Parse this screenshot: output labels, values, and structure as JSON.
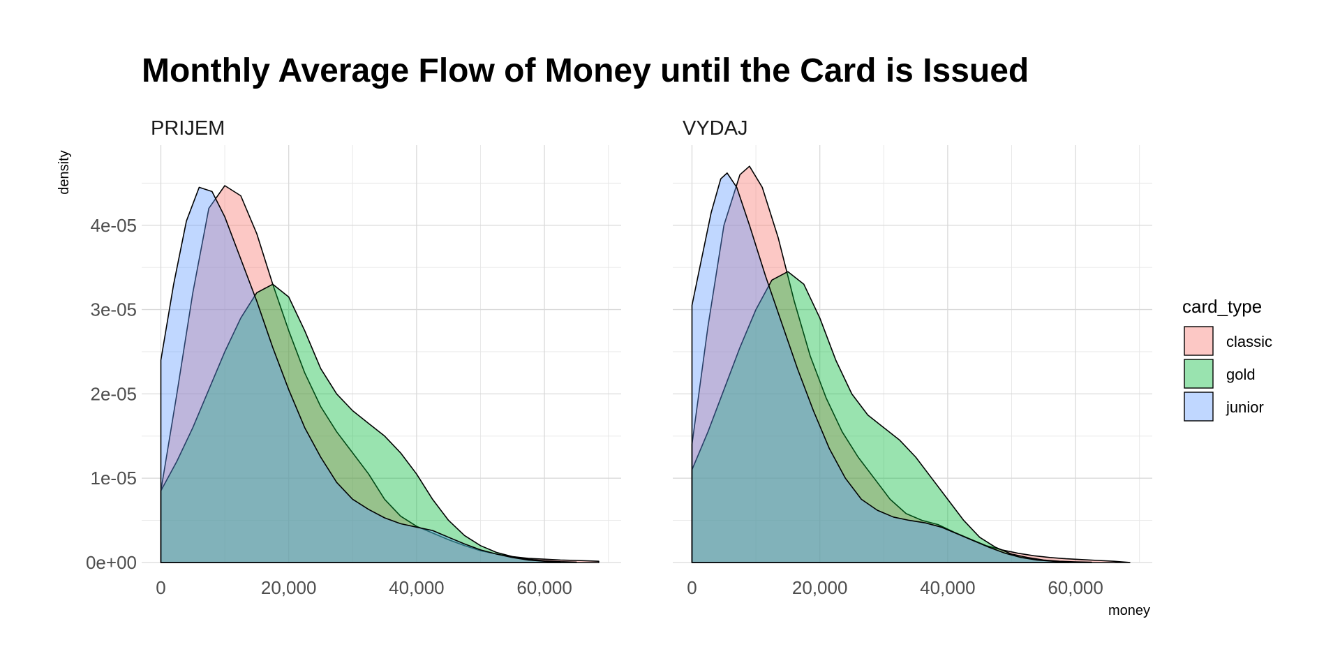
{
  "chart_data": {
    "type": "area",
    "title": "Monthly Average Flow of Money until the Card is Issued",
    "xlabel": "money",
    "ylabel": "density",
    "xlim": [
      -3000,
      72000
    ],
    "ylim": [
      0,
      4.95e-05
    ],
    "x_ticks": [
      0,
      20000,
      40000,
      60000
    ],
    "x_tick_labels": [
      "0",
      "20,000",
      "40,000",
      "60,000"
    ],
    "y_ticks": [
      0,
      1e-05,
      2e-05,
      3e-05,
      4e-05
    ],
    "y_tick_labels": [
      "0e+00",
      "1e-05",
      "2e-05",
      "3e-05",
      "4e-05"
    ],
    "grid": true,
    "legend": {
      "title": "card_type",
      "position": "right",
      "entries": [
        "classic",
        "gold",
        "junior"
      ]
    },
    "colors": {
      "classic": "#F8766D",
      "gold": "#00BA38",
      "junior": "#619CFF"
    },
    "fill_opacity": 0.4,
    "panels": [
      {
        "facet": "PRIJEM",
        "series": [
          {
            "name": "classic",
            "points": [
              [
                0,
                8.5e-06
              ],
              [
                2500,
                2e-05
              ],
              [
                5000,
                3.2e-05
              ],
              [
                7500,
                4.2e-05
              ],
              [
                10000,
                4.47e-05
              ],
              [
                12500,
                4.35e-05
              ],
              [
                15000,
                3.9e-05
              ],
              [
                17500,
                3.3e-05
              ],
              [
                20000,
                2.75e-05
              ],
              [
                22500,
                2.25e-05
              ],
              [
                25000,
                1.85e-05
              ],
              [
                27500,
                1.55e-05
              ],
              [
                30000,
                1.3e-05
              ],
              [
                32500,
                1.05e-05
              ],
              [
                35000,
                7.5e-06
              ],
              [
                37500,
                5.5e-06
              ],
              [
                40000,
                4.3e-06
              ],
              [
                42500,
                3.5e-06
              ],
              [
                45000,
                2.7e-06
              ],
              [
                47500,
                2e-06
              ],
              [
                50000,
                1.4e-06
              ],
              [
                52500,
                1e-06
              ],
              [
                55000,
                7e-07
              ],
              [
                57500,
                5e-07
              ],
              [
                60000,
                4e-07
              ],
              [
                62500,
                3e-07
              ],
              [
                65000,
                2.5e-07
              ],
              [
                68500,
                1.5e-07
              ]
            ]
          },
          {
            "name": "gold",
            "points": [
              [
                0,
                8.5e-06
              ],
              [
                2500,
                1.2e-05
              ],
              [
                5000,
                1.6e-05
              ],
              [
                7500,
                2.05e-05
              ],
              [
                10000,
                2.5e-05
              ],
              [
                12500,
                2.9e-05
              ],
              [
                15000,
                3.2e-05
              ],
              [
                17500,
                3.3e-05
              ],
              [
                20000,
                3.15e-05
              ],
              [
                22500,
                2.75e-05
              ],
              [
                25000,
                2.3e-05
              ],
              [
                27500,
                2e-05
              ],
              [
                30000,
                1.8e-05
              ],
              [
                32500,
                1.65e-05
              ],
              [
                35000,
                1.5e-05
              ],
              [
                37500,
                1.3e-05
              ],
              [
                40000,
                1.05e-05
              ],
              [
                42500,
                7.5e-06
              ],
              [
                45000,
                5e-06
              ],
              [
                47500,
                3.2e-06
              ],
              [
                50000,
                2e-06
              ],
              [
                52500,
                1.2e-06
              ],
              [
                55000,
                7e-07
              ],
              [
                57500,
                4e-07
              ],
              [
                60000,
                2e-07
              ],
              [
                62500,
                1e-07
              ],
              [
                65000,
                5e-08
              ]
            ]
          },
          {
            "name": "junior",
            "points": [
              [
                0,
                2.4e-05
              ],
              [
                2000,
                3.3e-05
              ],
              [
                4000,
                4.05e-05
              ],
              [
                6000,
                4.45e-05
              ],
              [
                8000,
                4.4e-05
              ],
              [
                10000,
                4.1e-05
              ],
              [
                12500,
                3.6e-05
              ],
              [
                15000,
                3.1e-05
              ],
              [
                17500,
                2.55e-05
              ],
              [
                20000,
                2.05e-05
              ],
              [
                22500,
                1.6e-05
              ],
              [
                25000,
                1.25e-05
              ],
              [
                27500,
                9.5e-06
              ],
              [
                30000,
                7.5e-06
              ],
              [
                32500,
                6.3e-06
              ],
              [
                35000,
                5.3e-06
              ],
              [
                37500,
                4.6e-06
              ],
              [
                40000,
                4.2e-06
              ],
              [
                42500,
                3.8e-06
              ],
              [
                45000,
                3e-06
              ],
              [
                47500,
                2.2e-06
              ],
              [
                50000,
                1.5e-06
              ],
              [
                52500,
                1e-06
              ],
              [
                55000,
                6e-07
              ],
              [
                57500,
                3e-07
              ],
              [
                60000,
                1.5e-07
              ],
              [
                62500,
                5e-08
              ]
            ]
          }
        ]
      },
      {
        "facet": "VYDAJ",
        "series": [
          {
            "name": "classic",
            "points": [
              [
                0,
                1.4e-05
              ],
              [
                2500,
                2.8e-05
              ],
              [
                5000,
                4e-05
              ],
              [
                7500,
                4.6e-05
              ],
              [
                9000,
                4.7e-05
              ],
              [
                11000,
                4.45e-05
              ],
              [
                13500,
                3.85e-05
              ],
              [
                16000,
                3.1e-05
              ],
              [
                18500,
                2.45e-05
              ],
              [
                21000,
                1.95e-05
              ],
              [
                23500,
                1.55e-05
              ],
              [
                26000,
                1.25e-05
              ],
              [
                28500,
                1e-05
              ],
              [
                31000,
                7.5e-06
              ],
              [
                33500,
                5.8e-06
              ],
              [
                36000,
                5e-06
              ],
              [
                38500,
                4.5e-06
              ],
              [
                41000,
                3.6e-06
              ],
              [
                43500,
                2.8e-06
              ],
              [
                46000,
                2e-06
              ],
              [
                48500,
                1.5e-06
              ],
              [
                51000,
                1.1e-06
              ],
              [
                53500,
                8e-07
              ],
              [
                56000,
                6e-07
              ],
              [
                58500,
                4.5e-07
              ],
              [
                61000,
                3.5e-07
              ],
              [
                63500,
                2.5e-07
              ],
              [
                66000,
                1.5e-07
              ],
              [
                68500,
                1e-08
              ]
            ]
          },
          {
            "name": "gold",
            "points": [
              [
                0,
                1.1e-05
              ],
              [
                2500,
                1.55e-05
              ],
              [
                5000,
                2.05e-05
              ],
              [
                7500,
                2.55e-05
              ],
              [
                10000,
                3e-05
              ],
              [
                12500,
                3.35e-05
              ],
              [
                15000,
                3.45e-05
              ],
              [
                17500,
                3.3e-05
              ],
              [
                20000,
                2.9e-05
              ],
              [
                22500,
                2.4e-05
              ],
              [
                25000,
                2e-05
              ],
              [
                27500,
                1.75e-05
              ],
              [
                30000,
                1.6e-05
              ],
              [
                32500,
                1.45e-05
              ],
              [
                35000,
                1.25e-05
              ],
              [
                37500,
                1e-05
              ],
              [
                40000,
                7.5e-06
              ],
              [
                42500,
                5e-06
              ],
              [
                45000,
                3e-06
              ],
              [
                47500,
                1.8e-06
              ],
              [
                50000,
                1e-06
              ],
              [
                52500,
                6e-07
              ],
              [
                55000,
                3e-07
              ],
              [
                57500,
                1.5e-07
              ],
              [
                60000,
                8e-08
              ],
              [
                62500,
                3e-08
              ]
            ]
          },
          {
            "name": "junior",
            "points": [
              [
                0,
                3.05e-05
              ],
              [
                1500,
                3.6e-05
              ],
              [
                3000,
                4.15e-05
              ],
              [
                4500,
                4.55e-05
              ],
              [
                5500,
                4.62e-05
              ],
              [
                7000,
                4.45e-05
              ],
              [
                9000,
                4e-05
              ],
              [
                11500,
                3.4e-05
              ],
              [
                14000,
                2.85e-05
              ],
              [
                16500,
                2.3e-05
              ],
              [
                19000,
                1.8e-05
              ],
              [
                21500,
                1.35e-05
              ],
              [
                24000,
                1e-05
              ],
              [
                26500,
                7.5e-06
              ],
              [
                29000,
                6.2e-06
              ],
              [
                31500,
                5.4e-06
              ],
              [
                34000,
                5e-06
              ],
              [
                36500,
                4.7e-06
              ],
              [
                39000,
                4.2e-06
              ],
              [
                41500,
                3.4e-06
              ],
              [
                44000,
                2.6e-06
              ],
              [
                46500,
                1.8e-06
              ],
              [
                49000,
                1.1e-06
              ],
              [
                51500,
                6e-07
              ],
              [
                54000,
                3e-07
              ],
              [
                56500,
                1.5e-07
              ],
              [
                59000,
                5e-08
              ]
            ]
          }
        ]
      }
    ]
  }
}
